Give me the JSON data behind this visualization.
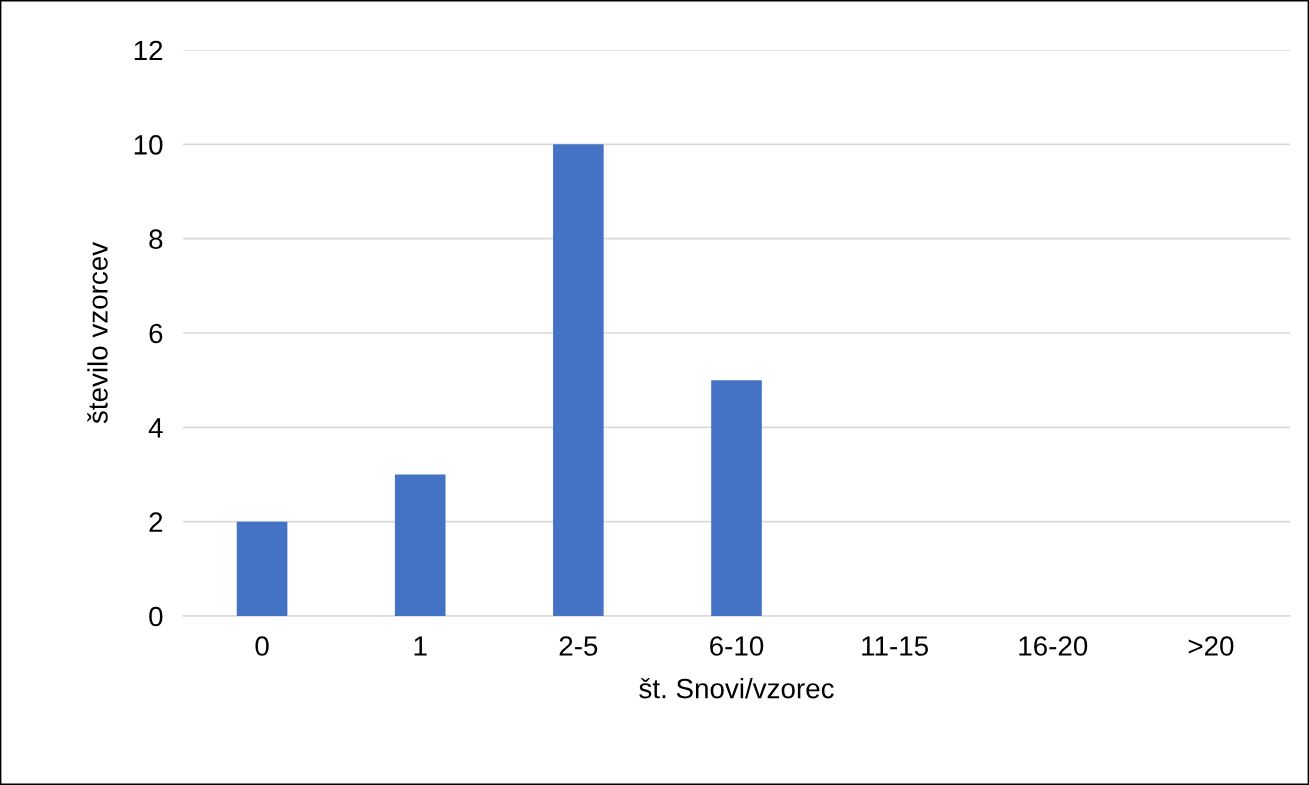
{
  "chart_data": {
    "type": "bar",
    "xlabel": "št. Snovi/vzorec",
    "ylabel": "število vzorcev",
    "categories": [
      "0",
      "1",
      "2-5",
      "6-10",
      "11-15",
      "16-20",
      ">20"
    ],
    "values": [
      2,
      3,
      10,
      5,
      0,
      0,
      0
    ],
    "color": "#4472c4",
    "ylim": [
      0,
      12
    ],
    "yticks": [
      0,
      2,
      4,
      6,
      8,
      10,
      12
    ],
    "grid": "y",
    "legend": false
  }
}
